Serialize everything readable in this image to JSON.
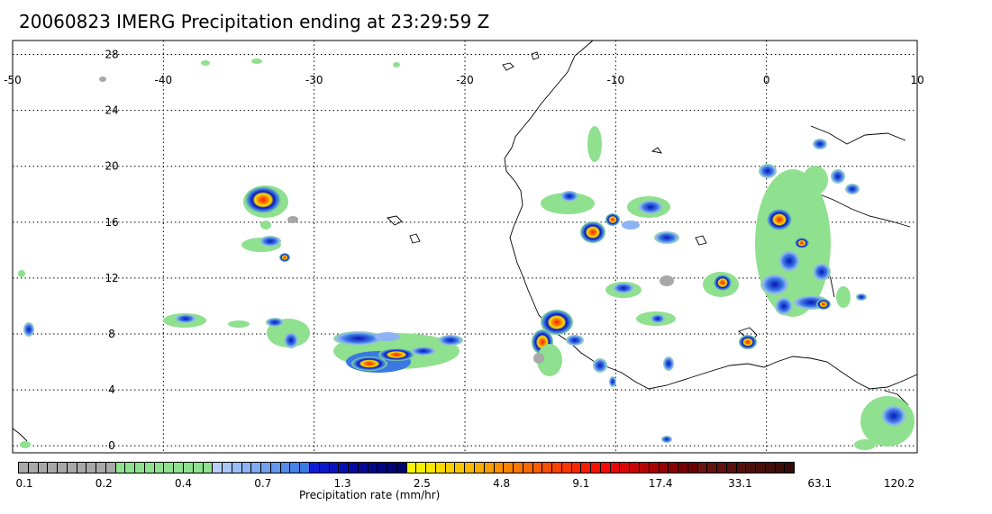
{
  "title": "20060823 IMERG Precipitation ending at 23:29:59 Z",
  "map": {
    "lon_ticks": [
      "-50",
      "-40",
      "-30",
      "-20",
      "-10",
      "0",
      "10"
    ],
    "lat_ticks": [
      "28",
      "24",
      "20",
      "16",
      "12",
      "8",
      "4",
      "0"
    ],
    "lon_range": [
      -50,
      10
    ],
    "lat_range": [
      -0.5,
      29
    ],
    "grid": "dotted"
  },
  "colorbar": {
    "title": "Precipitation rate (mm/hr)",
    "tick_labels": [
      "0.1",
      "0.2",
      "0.4",
      "0.7",
      "1.3",
      "2.5",
      "4.8",
      "9.1",
      "17.4",
      "33.1",
      "63.1",
      "120.2"
    ],
    "colors": [
      "#a8a8a8",
      "#a8a8a8",
      "#a8a8a8",
      "#a8a8a8",
      "#a8a8a8",
      "#a8a8a8",
      "#a8a8a8",
      "#a8a8a8",
      "#a8a8a8",
      "#a8a8a8",
      "#8fe08f",
      "#8fe08f",
      "#8fe08f",
      "#8fe08f",
      "#8fe08f",
      "#8fe08f",
      "#8fe08f",
      "#8fe08f",
      "#8fe08f",
      "#8fe08f",
      "#b7d0f7",
      "#a9c7f7",
      "#9bbdf5",
      "#8db3f3",
      "#7faaf1",
      "#71a0ef",
      "#6396ec",
      "#558ce9",
      "#4782e6",
      "#3a78e2",
      "#0e1cd6",
      "#0b18c9",
      "#0914bc",
      "#0710b0",
      "#050ca3",
      "#040997",
      "#03078c",
      "#020582",
      "#020478",
      "#01036e",
      "#f8f700",
      "#f8ef00",
      "#f8e500",
      "#f8da00",
      "#f8cf00",
      "#f8c400",
      "#f8b800",
      "#f8ab00",
      "#f89e00",
      "#f89100",
      "#f88300",
      "#f87700",
      "#f86a00",
      "#f85d00",
      "#f85000",
      "#f84300",
      "#f83600",
      "#f82900",
      "#f81c00",
      "#f81000",
      "#f80a0a",
      "#e80808",
      "#d80606",
      "#c80505",
      "#b80404",
      "#a80303",
      "#980202",
      "#880202",
      "#780101",
      "#6a0101",
      "#6c1410",
      "#66130f",
      "#60120e",
      "#5a110d",
      "#54100c",
      "#4e0f0b",
      "#480e0a",
      "#420d09",
      "#3c0c08",
      "#360b07"
    ]
  },
  "layers": {
    "coastline_color": "#000000",
    "precip_scale_colors": {
      "gray": "#a8a8a8",
      "green": "#8fe08f",
      "lightblue": "#8db3f3",
      "blue": "#3a78e2",
      "darkblue": "#0914bc",
      "yellow": "#f8e500",
      "orange": "#f89100",
      "red": "#f81c00",
      "darkred": "#980202"
    }
  }
}
